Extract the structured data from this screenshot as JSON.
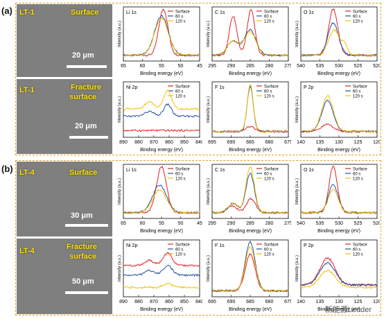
{
  "panels": [
    {
      "label": "(a)",
      "sem": [
        {
          "sample": "LT-1",
          "title": [
            "Surface"
          ],
          "scale": "20 μm"
        },
        {
          "sample": "LT-1",
          "title": [
            "Fracture",
            "surface"
          ],
          "scale": "20 μm"
        }
      ]
    },
    {
      "label": "(b)",
      "sem": [
        {
          "sample": "LT-4",
          "title": [
            "Surface"
          ],
          "scale": "30 μm"
        },
        {
          "sample": "LT-4",
          "title": [
            "Fracture",
            "surface"
          ],
          "scale": "50 μm"
        }
      ]
    }
  ],
  "axis_text": {
    "xlabel": "Binding energy (eV)",
    "ylabel": "Intensity (a.u.)"
  },
  "legend": [
    "Surface",
    "60 s",
    "120 s"
  ],
  "colors": {
    "surface": "#e02020",
    "s60": "#2050a0",
    "s120": "#f0c000",
    "frame": "#e0a020",
    "sem": "#7f7f7f"
  },
  "watermark": "新能源Leader",
  "chart_data": [
    {
      "type": "line",
      "panel": "a",
      "element": "Li 1s",
      "xticks": [
        65,
        60,
        55,
        50,
        45
      ],
      "xlim": [
        65,
        45
      ],
      "series": [
        {
          "name": "Surface",
          "peaks": [
            [
              54.5,
              1.0,
              1.2
            ]
          ]
        },
        {
          "name": "60 s",
          "peaks": [
            [
              55.0,
              0.85,
              1.8
            ]
          ]
        },
        {
          "name": "120 s",
          "peaks": [
            [
              55.0,
              0.8,
              1.8
            ]
          ]
        }
      ]
    },
    {
      "type": "line",
      "panel": "a",
      "element": "C 1s",
      "xticks": [
        295,
        290,
        285,
        280,
        275
      ],
      "xlim": [
        295,
        275
      ],
      "series": [
        {
          "name": "Surface",
          "peaks": [
            [
              289.5,
              0.85,
              1.0
            ],
            [
              284.8,
              1.0,
              1.0
            ]
          ]
        },
        {
          "name": "60 s",
          "peaks": [
            [
              289.5,
              0.3,
              1.5
            ],
            [
              285.0,
              0.55,
              1.5
            ]
          ]
        },
        {
          "name": "120 s",
          "peaks": [
            [
              289.5,
              0.3,
              1.5
            ],
            [
              285.0,
              0.5,
              1.5
            ]
          ]
        }
      ]
    },
    {
      "type": "line",
      "panel": "a",
      "element": "O 1s",
      "xticks": [
        540,
        535,
        530,
        525,
        520
      ],
      "xlim": [
        540,
        520
      ],
      "series": [
        {
          "name": "Surface",
          "peaks": [
            [
              531.5,
              1.0,
              1.2
            ]
          ]
        },
        {
          "name": "60 s",
          "peaks": [
            [
              531.5,
              0.7,
              1.4
            ]
          ]
        },
        {
          "name": "120 s",
          "peaks": [
            [
              531.3,
              0.55,
              1.4
            ],
            [
              528.5,
              0.2,
              0.8
            ]
          ]
        }
      ]
    },
    {
      "type": "line",
      "panel": "a",
      "element": "Ni 2p",
      "xticks": [
        890,
        880,
        870,
        860,
        850,
        840
      ],
      "xlim": [
        890,
        840
      ],
      "series": [
        {
          "name": "Surface",
          "base": 0.1,
          "peaks": []
        },
        {
          "name": "60 s",
          "base": 0.4,
          "peaks": [
            [
              861,
              0.25,
              2.5
            ],
            [
              873,
              0.1,
              3
            ]
          ]
        },
        {
          "name": "120 s",
          "base": 0.55,
          "peaks": [
            [
              861,
              0.4,
              2.5
            ],
            [
              873,
              0.15,
              3
            ]
          ]
        }
      ]
    },
    {
      "type": "line",
      "panel": "a",
      "element": "F 1s",
      "xticks": [
        695,
        690,
        685,
        680,
        675
      ],
      "xlim": [
        695,
        675
      ],
      "series": [
        {
          "name": "Surface",
          "peaks": [
            [
              685,
              0.1,
              1.2
            ]
          ]
        },
        {
          "name": "60 s",
          "peaks": [
            [
              685,
              0.95,
              0.8
            ]
          ]
        },
        {
          "name": "120 s",
          "peaks": [
            [
              685,
              1.0,
              0.8
            ]
          ]
        }
      ]
    },
    {
      "type": "line",
      "panel": "a",
      "element": "P 2p",
      "xticks": [
        140,
        135,
        130,
        125,
        120
      ],
      "xlim": [
        140,
        120
      ],
      "series": [
        {
          "name": "Surface",
          "peaks": [
            [
              133,
              0.15,
              1.5
            ]
          ]
        },
        {
          "name": "60 s",
          "peaks": [
            [
              133,
              0.65,
              1.5
            ]
          ]
        },
        {
          "name": "120 s",
          "peaks": [
            [
              133,
              0.75,
              1.5
            ]
          ]
        }
      ]
    },
    {
      "type": "line",
      "panel": "b",
      "element": "Li 1s",
      "xticks": [
        65,
        60,
        55,
        50,
        45
      ],
      "xlim": [
        65,
        45
      ],
      "series": [
        {
          "name": "Surface",
          "peaks": [
            [
              55,
              1.0,
              1.3
            ]
          ]
        },
        {
          "name": "60 s",
          "peaks": [
            [
              55.5,
              0.6,
              1.8
            ]
          ]
        },
        {
          "name": "120 s",
          "peaks": [
            [
              55.5,
              0.5,
              1.8
            ]
          ]
        }
      ]
    },
    {
      "type": "line",
      "panel": "b",
      "element": "C 1s",
      "xticks": [
        295,
        290,
        285,
        280,
        275
      ],
      "xlim": [
        295,
        275
      ],
      "series": [
        {
          "name": "Surface",
          "peaks": [
            [
              289.8,
              0.15,
              1.2
            ],
            [
              284.8,
              0.3,
              1.2
            ]
          ]
        },
        {
          "name": "60 s",
          "peaks": [
            [
              289.5,
              0.2,
              1.3
            ],
            [
              285,
              0.85,
              1.1
            ]
          ]
        },
        {
          "name": "120 s",
          "peaks": [
            [
              289.5,
              0.2,
              1.3
            ],
            [
              285,
              1.0,
              1.1
            ]
          ]
        }
      ]
    },
    {
      "type": "line",
      "panel": "b",
      "element": "O 1s",
      "xticks": [
        540,
        535,
        530,
        525,
        520
      ],
      "xlim": [
        540,
        520
      ],
      "series": [
        {
          "name": "Surface",
          "peaks": [
            [
              531.5,
              1.0,
              1.1
            ]
          ]
        },
        {
          "name": "60 s",
          "peaks": [
            [
              531.5,
              0.6,
              1.3
            ]
          ]
        },
        {
          "name": "120 s",
          "peaks": [
            [
              531.5,
              0.5,
              1.3
            ]
          ]
        }
      ]
    },
    {
      "type": "line",
      "panel": "b",
      "element": "Ni 2p",
      "xticks": [
        890,
        880,
        870,
        860,
        850,
        840
      ],
      "xlim": [
        890,
        840
      ],
      "series": [
        {
          "name": "Surface",
          "base": 0.6,
          "peaks": [
            [
              861,
              0.25,
              3
            ],
            [
              873,
              0.1,
              3
            ]
          ]
        },
        {
          "name": "60 s",
          "base": 0.4,
          "peaks": [
            [
              861,
              0.2,
              3
            ],
            [
              873,
              0.1,
              3
            ]
          ]
        },
        {
          "name": "120 s",
          "base": 0.15,
          "peaks": [
            [
              861,
              0.08,
              3
            ]
          ]
        }
      ]
    },
    {
      "type": "line",
      "panel": "b",
      "element": "F 1s",
      "xticks": [
        695,
        690,
        685,
        680,
        675
      ],
      "xlim": [
        695,
        675
      ],
      "series": [
        {
          "name": "Surface",
          "peaks": [
            [
              685,
              0.75,
              1.3
            ]
          ]
        },
        {
          "name": "60 s",
          "peaks": [
            [
              685,
              1.0,
              1.3
            ]
          ]
        },
        {
          "name": "120 s",
          "peaks": [
            [
              685,
              0.9,
              1.3
            ]
          ]
        }
      ]
    },
    {
      "type": "line",
      "panel": "b",
      "element": "P 2p",
      "xticks": [
        140,
        135,
        130,
        125,
        120
      ],
      "xlim": [
        140,
        120
      ],
      "series": [
        {
          "name": "Surface",
          "base": 0.2,
          "peaks": [
            [
              133,
              0.55,
              2
            ]
          ]
        },
        {
          "name": "60 s",
          "base": 0.2,
          "peaks": [
            [
              133,
              0.45,
              2
            ]
          ]
        },
        {
          "name": "120 s",
          "base": 0.15,
          "peaks": [
            [
              133,
              0.35,
              2
            ]
          ]
        }
      ]
    }
  ]
}
